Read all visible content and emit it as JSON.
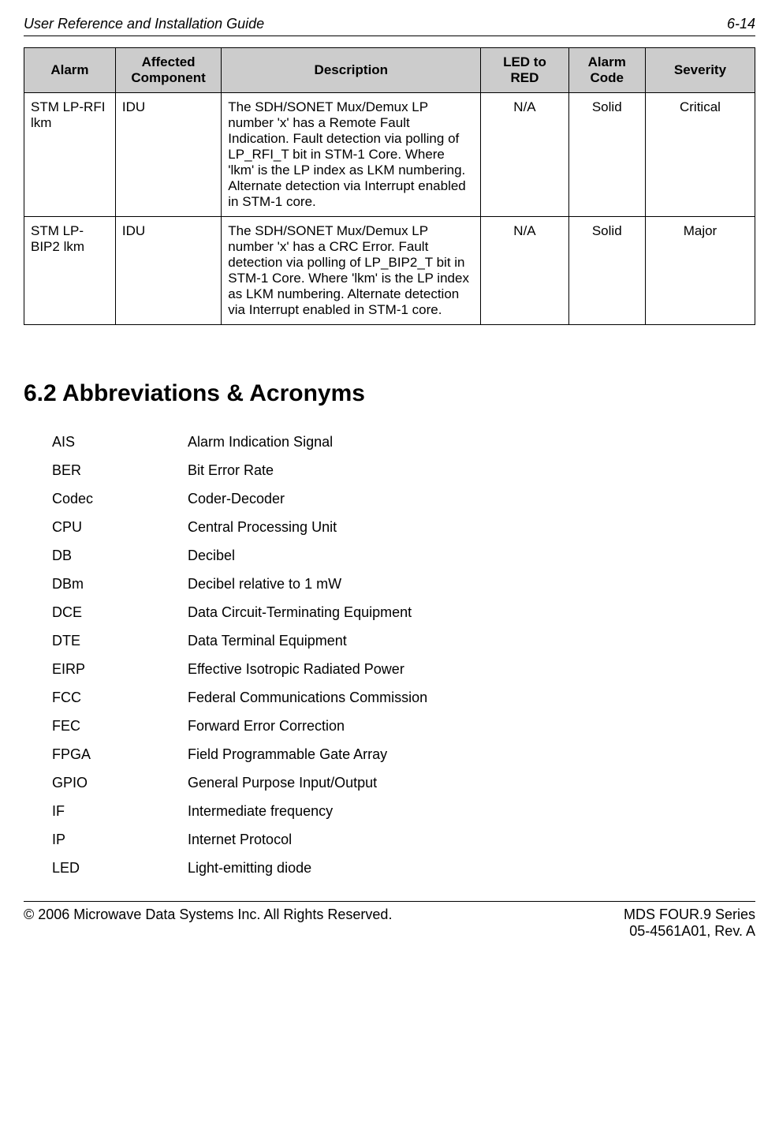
{
  "header": {
    "title": "User Reference and Installation Guide",
    "page_no": "6-14"
  },
  "table": {
    "col_widths": [
      "12.5%",
      "14.5%",
      "35.5%",
      "12%",
      "10.5%",
      "15%"
    ],
    "header_bg": "#cccccc",
    "border_color": "#000000",
    "headers": [
      "Alarm",
      "Affected Component",
      "Description",
      "LED to RED",
      "Alarm Code",
      "Severity"
    ],
    "rows": [
      {
        "alarm": "STM LP-RFI lkm",
        "component": "IDU",
        "description": "The SDH/SONET Mux/Demux LP number 'x' has a Remote Fault Indication. Fault detection via polling of LP_RFI_T bit in STM-1 Core. Where 'lkm' is the LP index as LKM numbering. Alternate detection via Interrupt enabled in STM-1 core.",
        "led": "N/A",
        "code": "Solid",
        "severity": "Critical"
      },
      {
        "alarm": "STM LP-BIP2 lkm",
        "component": "IDU",
        "description": "The SDH/SONET Mux/Demux LP number 'x' has a CRC Error. Fault detection via polling of LP_BIP2_T bit in STM-1 Core. Where 'lkm' is the LP index as LKM numbering. Alternate detection via Interrupt enabled in STM-1 core.",
        "led": "N/A",
        "code": "Solid",
        "severity": "Major"
      }
    ]
  },
  "section": {
    "number": "6.2",
    "title": "Abbreviations & Acronyms"
  },
  "abbr": [
    {
      "term": "AIS",
      "def": "Alarm Indication Signal"
    },
    {
      "term": "BER",
      "def": "Bit Error Rate"
    },
    {
      "term": "Codec",
      "def": "Coder-Decoder"
    },
    {
      "term": "CPU",
      "def": "Central Processing Unit"
    },
    {
      "term": "DB",
      "def": "Decibel"
    },
    {
      "term": "DBm",
      "def": "Decibel relative to 1 mW"
    },
    {
      "term": "DCE",
      "def": "Data Circuit-Terminating Equipment"
    },
    {
      "term": "DTE",
      "def": "Data Terminal Equipment"
    },
    {
      "term": "EIRP",
      "def": "Effective Isotropic Radiated Power"
    },
    {
      "term": "FCC",
      "def": "Federal Communications Commission"
    },
    {
      "term": "FEC",
      "def": "Forward Error Correction"
    },
    {
      "term": "FPGA",
      "def": "Field Programmable Gate Array"
    },
    {
      "term": "GPIO",
      "def": "General Purpose Input/Output"
    },
    {
      "term": "IF",
      "def": "Intermediate frequency"
    },
    {
      "term": "IP",
      "def": "Internet Protocol"
    },
    {
      "term": "LED",
      "def": "Light-emitting diode"
    }
  ],
  "footer": {
    "left": "© 2006 Microwave Data Systems Inc.  All Rights Reserved.",
    "right1": "MDS FOUR.9 Series",
    "right2": "05-4561A01, Rev. A"
  }
}
